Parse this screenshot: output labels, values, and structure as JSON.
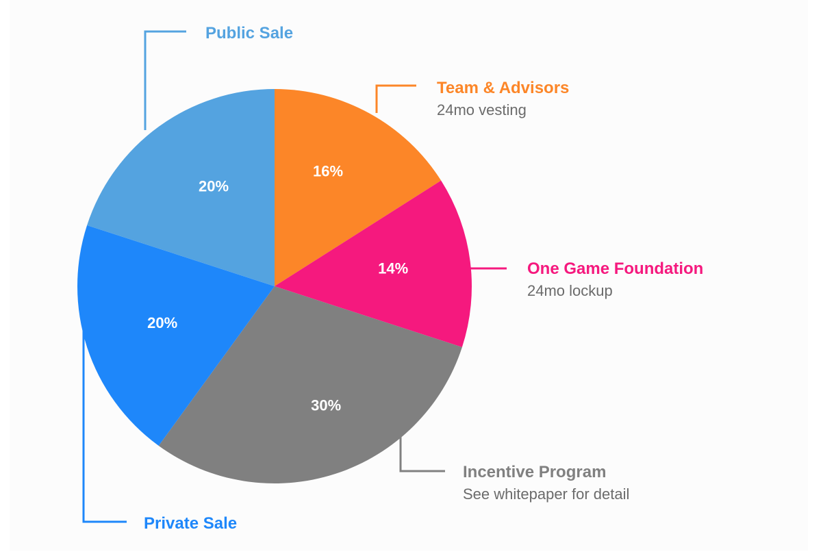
{
  "chart_data": {
    "type": "pie",
    "title": "",
    "start_angle_deg": 0,
    "direction": "clockwise",
    "slices": [
      {
        "label": "Team & Advisors",
        "note": "24mo vesting",
        "value": 16,
        "value_label": "16%",
        "color": "#FC8628"
      },
      {
        "label": "One Game Foundation",
        "note": "24mo lockup",
        "value": 14,
        "value_label": "14%",
        "color": "#F5197E"
      },
      {
        "label": "Incentive Program",
        "note": "See whitepaper for detail",
        "value": 30,
        "value_label": "30%",
        "color": "#808080"
      },
      {
        "label": "Private Sale",
        "note": "",
        "value": 20,
        "value_label": "20%",
        "color": "#1E87FA"
      },
      {
        "label": "Public Sale",
        "note": "",
        "value": 20,
        "value_label": "20%",
        "color": "#54A3E0"
      }
    ],
    "legend": "callouts"
  }
}
